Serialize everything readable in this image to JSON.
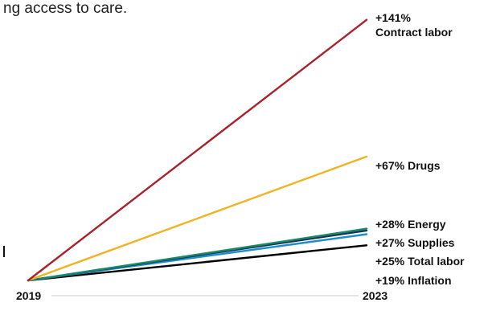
{
  "intro_text": "ng access to care.",
  "chart_data": {
    "type": "line",
    "x": [
      "2019",
      "2023"
    ],
    "ylim": [
      0,
      145
    ],
    "grid": false,
    "legend": "none",
    "series": [
      {
        "name": "Contract labor",
        "values": [
          0,
          141
        ],
        "label": "+141%",
        "label2": "Contract labor",
        "color": "#a8222c"
      },
      {
        "name": "Drugs",
        "values": [
          0,
          67
        ],
        "label": "+67% Drugs",
        "color": "#f0b323"
      },
      {
        "name": "Energy",
        "values": [
          0,
          28
        ],
        "label": "+28% Energy",
        "color": "#1a8a66"
      },
      {
        "name": "Supplies",
        "values": [
          0,
          27
        ],
        "label": "+27% Supplies",
        "color": "#15335a"
      },
      {
        "name": "Total labor",
        "values": [
          0,
          25
        ],
        "label": "+25% Total labor",
        "color": "#1f8dc7"
      },
      {
        "name": "Inflation",
        "values": [
          0,
          19
        ],
        "label": "+19% Inflation",
        "color": "#000000"
      }
    ]
  }
}
